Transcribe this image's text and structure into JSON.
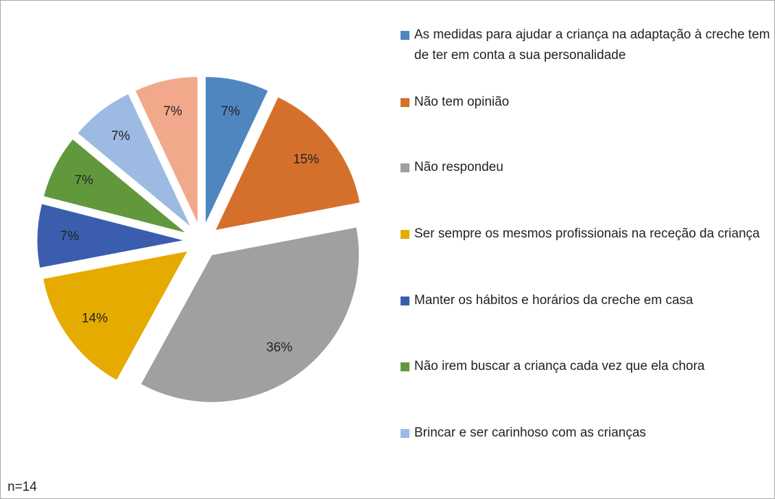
{
  "chart_data": {
    "type": "pie",
    "categories": [
      "As medidas para ajudar a criança na adaptação à creche tem de ter em conta a sua personalidade",
      "Não tem opinião",
      "Não respondeu",
      "Ser sempre os mesmos profissionais na receção da criança",
      "Manter os hábitos e horários da creche em casa",
      "Não irem buscar a criança cada vez que ela chora",
      "Brincar e ser carinhoso com as crianças",
      null
    ],
    "values": [
      7,
      15,
      36,
      14,
      7,
      7,
      7,
      7
    ],
    "value_labels": [
      "7%",
      "15%",
      "36%",
      "14%",
      "7%",
      "7%",
      "7%",
      "7%"
    ],
    "colors": [
      "#4f86c0",
      "#d5702c",
      "#a0a0a0",
      "#e6ab00",
      "#3a5ead",
      "#62983c",
      "#9dbbe2",
      "#f2a98b"
    ],
    "annotation": "n=14"
  }
}
